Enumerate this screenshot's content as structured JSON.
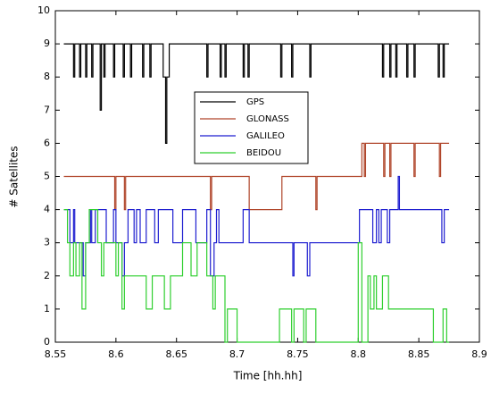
{
  "chart_data": {
    "type": "line",
    "step": true,
    "xlabel": "Time [hh.hh]",
    "ylabel": "# Satellites",
    "xlim": [
      8.55,
      8.9
    ],
    "xticks": [
      8.55,
      8.6,
      8.65,
      8.7,
      8.75,
      8.8,
      8.85,
      8.9
    ],
    "ylim": [
      0,
      10
    ],
    "yticks": [
      0,
      1,
      2,
      3,
      4,
      5,
      6,
      7,
      8,
      9,
      10
    ],
    "legend": "center",
    "series": [
      {
        "name": "GPS",
        "color": "#000000",
        "x": [
          8.557,
          8.565,
          8.566,
          8.57,
          8.571,
          8.575,
          8.576,
          8.58,
          8.581,
          8.587,
          8.588,
          8.59,
          8.591,
          8.598,
          8.599,
          8.606,
          8.607,
          8.612,
          8.613,
          8.622,
          8.623,
          8.628,
          8.629,
          8.639,
          8.641,
          8.642,
          8.644,
          8.675,
          8.676,
          8.686,
          8.687,
          8.69,
          8.691,
          8.705,
          8.706,
          8.709,
          8.71,
          8.736,
          8.737,
          8.745,
          8.746,
          8.76,
          8.761,
          8.82,
          8.821,
          8.826,
          8.827,
          8.831,
          8.832,
          8.84,
          8.841,
          8.846,
          8.847,
          8.866,
          8.867,
          8.87,
          8.871,
          8.875
        ],
        "values": [
          9,
          8,
          9,
          8,
          9,
          8,
          9,
          8,
          9,
          7,
          9,
          8,
          9,
          8,
          9,
          8,
          9,
          8,
          9,
          8,
          9,
          8,
          9,
          8,
          6,
          8,
          9,
          8,
          9,
          8,
          9,
          8,
          9,
          8,
          9,
          8,
          9,
          8,
          9,
          8,
          9,
          8,
          9,
          8,
          9,
          8,
          9,
          8,
          9,
          8,
          9,
          8,
          9,
          8,
          9,
          8,
          9,
          9
        ]
      },
      {
        "name": "GLONASS",
        "color": "#b0452a",
        "x": [
          8.557,
          8.599,
          8.6,
          8.607,
          8.608,
          8.678,
          8.679,
          8.71,
          8.737,
          8.765,
          8.766,
          8.803,
          8.805,
          8.806,
          8.821,
          8.822,
          8.826,
          8.827,
          8.846,
          8.847,
          8.867,
          8.868,
          8.875
        ],
        "values": [
          5,
          4,
          5,
          4,
          5,
          4,
          5,
          4,
          5,
          4,
          5,
          6,
          5,
          6,
          5,
          6,
          5,
          6,
          5,
          6,
          5,
          6,
          6
        ]
      },
      {
        "name": "GALILEO",
        "color": "#1f1fd0",
        "x": [
          8.557,
          8.562,
          8.565,
          8.566,
          8.573,
          8.575,
          8.579,
          8.58,
          8.583,
          8.592,
          8.598,
          8.6,
          8.605,
          8.607,
          8.61,
          8.615,
          8.617,
          8.62,
          8.625,
          8.632,
          8.635,
          8.647,
          8.655,
          8.666,
          8.675,
          8.678,
          8.681,
          8.683,
          8.685,
          8.705,
          8.71,
          8.746,
          8.747,
          8.758,
          8.76,
          8.801,
          8.812,
          8.815,
          8.817,
          8.819,
          8.824,
          8.826,
          8.833,
          8.834,
          8.869,
          8.871,
          8.875
        ],
        "values": [
          4,
          3,
          4,
          3,
          2,
          3,
          4,
          3,
          4,
          3,
          4,
          3,
          2,
          3,
          4,
          3,
          4,
          3,
          4,
          3,
          4,
          3,
          4,
          3,
          4,
          2,
          3,
          4,
          3,
          4,
          3,
          2,
          3,
          2,
          3,
          4,
          3,
          4,
          3,
          4,
          3,
          4,
          5,
          4,
          3,
          4,
          4
        ]
      },
      {
        "name": "BEIDOU",
        "color": "#2fcf2f",
        "x": [
          8.557,
          8.56,
          8.562,
          8.565,
          8.567,
          8.57,
          8.572,
          8.575,
          8.578,
          8.585,
          8.588,
          8.59,
          8.6,
          8.602,
          8.605,
          8.607,
          8.625,
          8.63,
          8.64,
          8.645,
          8.655,
          8.662,
          8.667,
          8.675,
          8.68,
          8.682,
          8.69,
          8.692,
          8.7,
          8.735,
          8.745,
          8.747,
          8.755,
          8.757,
          8.765,
          8.8,
          8.803,
          8.808,
          8.81,
          8.813,
          8.815,
          8.82,
          8.825,
          8.862,
          8.87,
          8.873,
          8.875
        ],
        "values": [
          4,
          3,
          2,
          3,
          2,
          3,
          1,
          3,
          4,
          3,
          2,
          3,
          2,
          3,
          1,
          2,
          1,
          2,
          1,
          2,
          3,
          2,
          3,
          2,
          1,
          2,
          0,
          1,
          0,
          1,
          0,
          1,
          0,
          1,
          0,
          3,
          0,
          2,
          1,
          2,
          1,
          2,
          1,
          0,
          1,
          0,
          0
        ]
      }
    ]
  }
}
